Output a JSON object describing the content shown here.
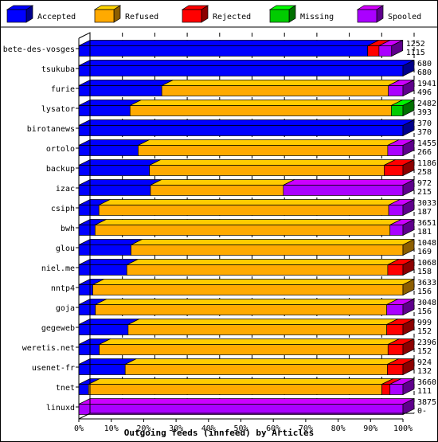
{
  "chart_data": {
    "type": "bar",
    "stacked": true,
    "orientation": "horizontal",
    "title": "Outgoing feeds (innfeed) by Articles",
    "xlim": [
      0,
      100
    ],
    "x_ticks": [
      "0%",
      "10%",
      "20%",
      "30%",
      "40%",
      "50%",
      "60%",
      "70%",
      "80%",
      "90%",
      "100%"
    ],
    "legend_position": "top",
    "legend": [
      {
        "name": "Accepted",
        "color": "#0000ff"
      },
      {
        "name": "Refused",
        "color": "#ffaa00"
      },
      {
        "name": "Rejected",
        "color": "#ff0000"
      },
      {
        "name": "Missing",
        "color": "#00cc00"
      },
      {
        "name": "Spooled",
        "color": "#aa00ff"
      }
    ],
    "categories": [
      {
        "name": "bete-des-vosges",
        "total": "1252",
        "accepted_count": "1115",
        "segments": [
          89.1,
          0,
          3.5,
          0,
          3.9
        ]
      },
      {
        "name": "tsukuba",
        "total": "680",
        "accepted_count": "680",
        "segments": [
          100,
          0,
          0,
          0,
          0
        ]
      },
      {
        "name": "furie",
        "total": "1941",
        "accepted_count": "496",
        "segments": [
          25.6,
          69.9,
          0,
          0,
          4.5
        ]
      },
      {
        "name": "lysator",
        "total": "2482",
        "accepted_count": "393",
        "segments": [
          15.8,
          80.6,
          0,
          3.6,
          0
        ]
      },
      {
        "name": "birotanews",
        "total": "370",
        "accepted_count": "370",
        "segments": [
          100,
          0,
          0,
          0,
          0
        ]
      },
      {
        "name": "ortolo",
        "total": "1455",
        "accepted_count": "266",
        "segments": [
          18.3,
          77.0,
          0,
          0,
          4.7
        ]
      },
      {
        "name": "backup",
        "total": "1186",
        "accepted_count": "258",
        "segments": [
          21.8,
          72.4,
          5.8,
          0,
          0
        ]
      },
      {
        "name": "izac",
        "total": "972",
        "accepted_count": "215",
        "segments": [
          22.1,
          41.0,
          0,
          0,
          36.9
        ]
      },
      {
        "name": "csiph",
        "total": "3033",
        "accepted_count": "187",
        "segments": [
          6.2,
          89.4,
          0,
          0,
          4.4
        ]
      },
      {
        "name": "bwh",
        "total": "3651",
        "accepted_count": "181",
        "segments": [
          5.0,
          91.0,
          0,
          0,
          4.0
        ]
      },
      {
        "name": "glou",
        "total": "1048",
        "accepted_count": "169",
        "segments": [
          16.1,
          83.9,
          0,
          0,
          0
        ]
      },
      {
        "name": "niel.me",
        "total": "1068",
        "accepted_count": "158",
        "segments": [
          14.8,
          80.5,
          4.7,
          0,
          0
        ]
      },
      {
        "name": "nntp4",
        "total": "3633",
        "accepted_count": "156",
        "segments": [
          4.3,
          95.7,
          0,
          0,
          0
        ]
      },
      {
        "name": "goja",
        "total": "3048",
        "accepted_count": "156",
        "segments": [
          5.1,
          89.9,
          0,
          0,
          5.0
        ]
      },
      {
        "name": "gegeweb",
        "total": "999",
        "accepted_count": "152",
        "segments": [
          15.2,
          79.8,
          5.0,
          0,
          0
        ]
      },
      {
        "name": "weretis.net",
        "total": "2396",
        "accepted_count": "152",
        "segments": [
          6.3,
          89.1,
          4.6,
          0,
          0
        ]
      },
      {
        "name": "usenet-fr",
        "total": "924",
        "accepted_count": "132",
        "segments": [
          14.3,
          80.9,
          4.8,
          0,
          0
        ]
      },
      {
        "name": "tnet",
        "total": "3660",
        "accepted_count": "111",
        "segments": [
          3.0,
          90.5,
          2.5,
          0,
          4.0
        ]
      },
      {
        "name": "linuxd",
        "total": "3875",
        "accepted_count": "0",
        "segments": [
          0,
          0,
          0,
          0,
          100
        ]
      }
    ]
  }
}
